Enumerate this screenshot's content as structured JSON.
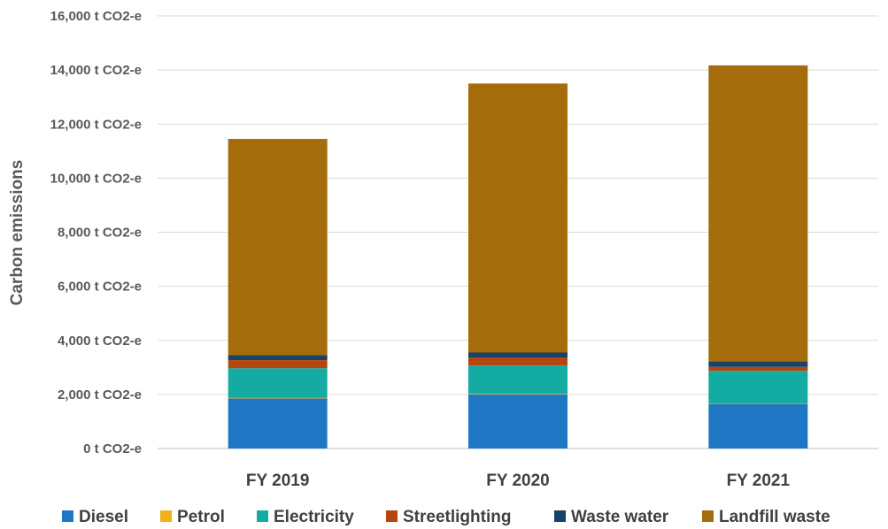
{
  "chart_data": {
    "type": "bar",
    "stacked": true,
    "title": "",
    "xlabel": "",
    "ylabel": "Carbon emissions",
    "ylim": [
      0,
      16000
    ],
    "yticks": [
      0,
      2000,
      4000,
      6000,
      8000,
      10000,
      12000,
      14000,
      16000
    ],
    "ytick_labels": [
      "0 t CO2-e",
      "2,000 t CO2-e",
      "4,000 t CO2-e",
      "6,000 t CO2-e",
      "8,000 t CO2-e",
      "10,000 t CO2-e",
      "12,000 t CO2-e",
      "14,000 t CO2-e",
      "16,000 t CO2-e"
    ],
    "grid": true,
    "legend_position": "bottom",
    "categories": [
      "FY 2019",
      "FY 2020",
      "FY 2021"
    ],
    "series": [
      {
        "name": "Diesel",
        "color": "#1f77c4",
        "values": [
          1850,
          2000,
          1650
        ]
      },
      {
        "name": "Petrol",
        "color": "#f2b11b",
        "values": [
          20,
          20,
          20
        ]
      },
      {
        "name": "Electricity",
        "color": "#13aba2",
        "values": [
          1100,
          1050,
          1200
        ]
      },
      {
        "name": "Streetlighting",
        "color": "#b4470f",
        "values": [
          300,
          300,
          150
        ]
      },
      {
        "name": "Waste water",
        "color": "#1a4266",
        "values": [
          180,
          180,
          200
        ]
      },
      {
        "name": "Landfill waste",
        "color": "#a46c0b",
        "values": [
          8000,
          9950,
          10950
        ]
      }
    ]
  }
}
